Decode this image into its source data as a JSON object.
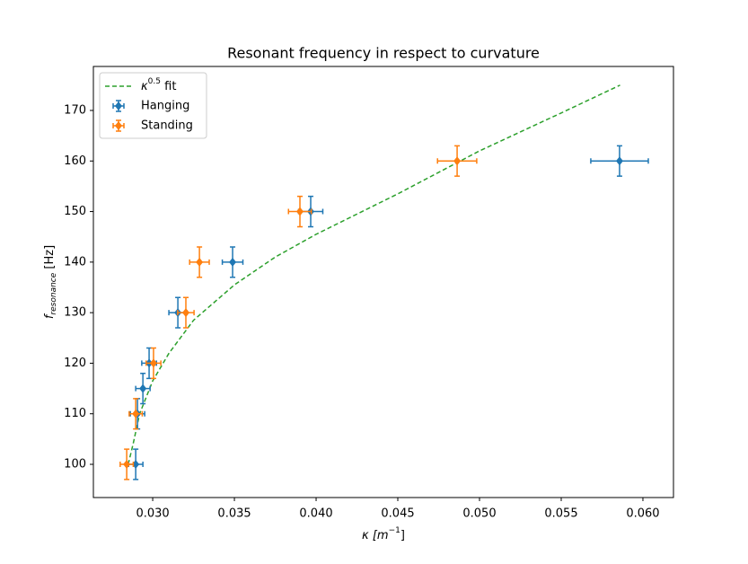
{
  "chart_data": {
    "type": "scatter",
    "title": "Resonant frequency in respect to curvature",
    "x_label_parts": [
      "κ [",
      "m",
      "−1",
      "]"
    ],
    "y_label_parts": [
      "f",
      "resonance",
      " [Hz]"
    ],
    "xlim": [
      0.02637,
      0.06187
    ],
    "ylim": [
      93.43,
      178.7
    ],
    "xticks": [
      {
        "value": 0.03,
        "label": "0.030"
      },
      0.035,
      {
        "value": 0.04,
        "label": "0.040"
      },
      0.045,
      {
        "value": 0.05,
        "label": "0.050"
      },
      0.055,
      {
        "value": 0.06,
        "label": "0.060"
      }
    ],
    "yticks": [
      100,
      110,
      120,
      130,
      140,
      150,
      160,
      170
    ],
    "legend": "upper left",
    "fit": {
      "name_parts": [
        "κ",
        "0.5",
        " fit"
      ],
      "color": "#2ca02c",
      "x": [
        0.0285,
        0.0288,
        0.0292,
        0.03,
        0.031,
        0.0325,
        0.035,
        0.0375,
        0.04,
        0.045,
        0.05,
        0.055,
        0.0586
      ],
      "values": [
        100,
        104,
        110,
        116.5,
        122,
        128.5,
        135.5,
        141,
        145.5,
        153.5,
        162,
        169.5,
        175
      ]
    },
    "series": [
      {
        "name": "Hanging",
        "color": "#1f77b4",
        "x": [
          0.02896,
          0.02907,
          0.0294,
          0.02978,
          0.03154,
          0.03489,
          0.03967,
          0.05857
        ],
        "values": [
          100,
          110,
          115,
          120,
          130,
          140,
          150,
          160
        ],
        "xerr": [
          0.00044,
          0.00044,
          0.00044,
          0.00045,
          0.00055,
          0.00063,
          0.00074,
          0.00176
        ],
        "yerr": [
          3,
          3,
          3,
          3,
          3,
          3,
          3,
          3
        ]
      },
      {
        "name": "Standing",
        "color": "#ff7f0e",
        "x": [
          0.02841,
          0.02896,
          0.03005,
          0.03203,
          0.03286,
          0.03901,
          0.04863
        ],
        "values": [
          100,
          110,
          120,
          130,
          140,
          150,
          160
        ],
        "xerr": [
          0.0004,
          0.0004,
          0.00045,
          0.0005,
          0.0006,
          0.0007,
          0.0012
        ],
        "yerr": [
          3,
          3,
          3,
          3,
          3,
          3,
          3
        ]
      }
    ]
  }
}
